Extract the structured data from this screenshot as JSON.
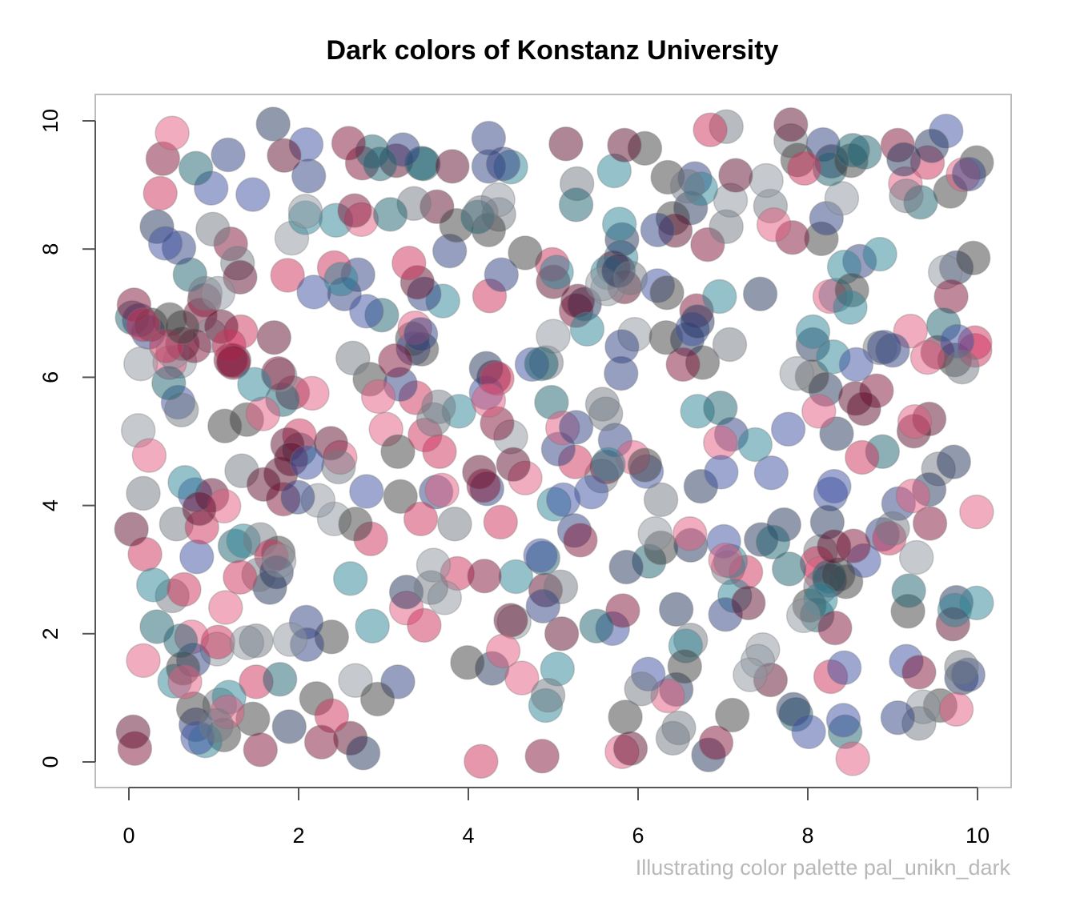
{
  "chart_data": {
    "type": "scatter",
    "title": "Dark colors of Konstanz University",
    "caption": "Illustrating color palette pal_unikn_dark",
    "xlabel": "",
    "ylabel": "",
    "xlim": [
      0,
      10
    ],
    "ylim": [
      0,
      10
    ],
    "x_ticks": [
      0,
      2,
      4,
      6,
      8,
      10
    ],
    "y_ticks": [
      0,
      2,
      4,
      6,
      8,
      10
    ],
    "tick_labels_x": [
      "0",
      "2",
      "4",
      "6",
      "8",
      "10"
    ],
    "tick_labels_y": [
      "0",
      "2",
      "4",
      "6",
      "8",
      "10"
    ],
    "grid": false,
    "legend": "none",
    "point_opacity": 0.5,
    "palette": [
      "#5e0d2c",
      "#7f1438",
      "#cf2f5a",
      "#e45c7f",
      "#23335b",
      "#2e3f80",
      "#3b4fa0",
      "#1b5f6e",
      "#2c8396",
      "#3d3d3d",
      "#727983",
      "#8d95a0"
    ],
    "n_points": 500,
    "seed": 20240519
  }
}
